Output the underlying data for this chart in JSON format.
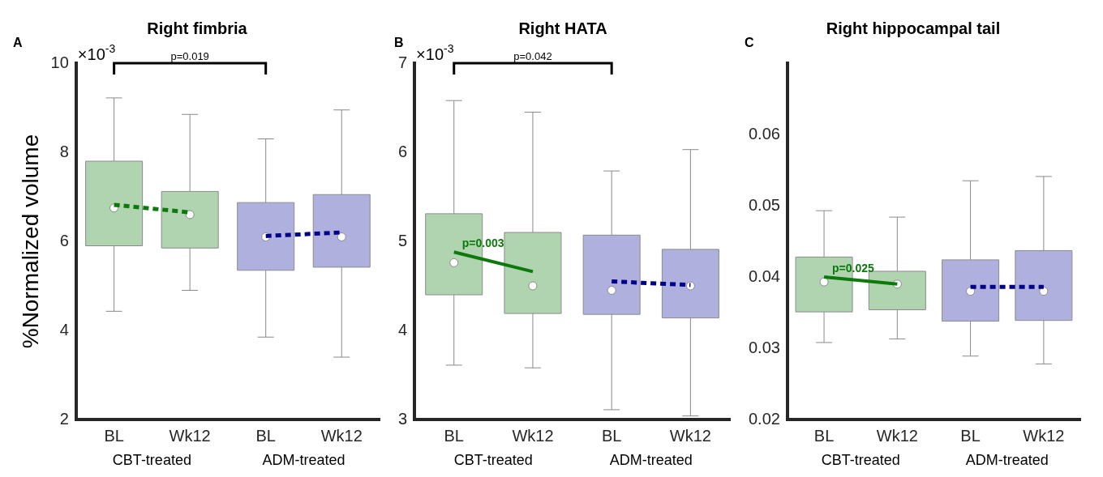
{
  "chart_data": [
    {
      "type": "box",
      "title": "Right fimbria",
      "ylabel": "%Normalized volume",
      "categories": [
        "BL",
        "Wk12",
        "BL",
        "Wk12"
      ],
      "ylim": [
        2,
        10
      ],
      "yticks": [
        2,
        4,
        6,
        8,
        10
      ],
      "grid": false,
      "colors": [
        "#b0d4b0",
        "#b0d4b0",
        "#b0b0de",
        "#b0b0de"
      ],
      "boxes": [
        {
          "low": 4.43,
          "q1": 5.9,
          "median": 6.75,
          "q3": 7.8,
          "high": 9.22
        },
        {
          "low": 4.9,
          "q1": 5.85,
          "median": 6.6,
          "q3": 7.12,
          "high": 8.85
        },
        {
          "low": 3.85,
          "q1": 5.35,
          "median": 6.1,
          "q3": 6.87,
          "high": 8.3
        },
        {
          "low": 3.4,
          "q1": 5.42,
          "median": 6.1,
          "q3": 7.05,
          "high": 8.95
        }
      ],
      "series": [
        {
          "type": "line",
          "color": "#0b7a0b",
          "line_style": "dashed",
          "values": [
            6.82,
            6.65,
            null,
            null
          ]
        },
        {
          "type": "line",
          "color": "#00008b",
          "line_style": "dashed",
          "values": [
            null,
            null,
            6.12,
            6.2
          ]
        }
      ],
      "annotations": [
        "A",
        "×10$^{-3}$",
        "CBT-treated",
        "ADM-treated",
        "p=0.019"
      ]
    },
    {
      "type": "box",
      "title": "Right HATA",
      "categories": [
        "BL",
        "Wk12",
        "BL",
        "Wk12"
      ],
      "ylim": [
        3,
        7
      ],
      "yticks": [
        3,
        4,
        5,
        6,
        7
      ],
      "grid": false,
      "colors": [
        "#b0d4b0",
        "#b0d4b0",
        "#b0b0de",
        "#b0b0de"
      ],
      "boxes": [
        {
          "low": 3.61,
          "q1": 4.4,
          "median": 4.76,
          "q3": 5.31,
          "high": 6.58
        },
        {
          "low": 3.58,
          "q1": 4.19,
          "median": 4.5,
          "q3": 5.1,
          "high": 6.45
        },
        {
          "low": 3.11,
          "q1": 4.18,
          "median": 4.45,
          "q3": 5.07,
          "high": 5.79
        },
        {
          "low": 3.04,
          "q1": 4.14,
          "median": 4.5,
          "q3": 4.91,
          "high": 6.03
        }
      ],
      "series": [
        {
          "type": "line",
          "color": "#0b7a0b",
          "line_style": "solid",
          "values": [
            4.88,
            4.66,
            null,
            null
          ]
        },
        {
          "type": "line",
          "color": "#00008b",
          "line_style": "dashed",
          "values": [
            null,
            null,
            4.55,
            4.51
          ]
        }
      ],
      "annotations": [
        "B",
        "×10$^{-3}$",
        "CBT-treated",
        "ADM-treated",
        "p=0.042",
        {
          "text": "p=0.003",
          "x": "BL",
          "y": 4.88
        }
      ]
    },
    {
      "type": "box",
      "title": "Right hippocampal tail",
      "categories": [
        "BL",
        "Wk12",
        "BL",
        "Wk12"
      ],
      "ylim": [
        0.02,
        0.07
      ],
      "yticks": [
        0.02,
        0.03,
        0.04,
        0.05,
        0.06
      ],
      "grid": false,
      "colors": [
        "#b0d4b0",
        "#b0d4b0",
        "#b0b0de",
        "#b0b0de"
      ],
      "boxes": [
        {
          "low": 0.0308,
          "q1": 0.0351,
          "median": 0.0393,
          "q3": 0.0428,
          "high": 0.0493
        },
        {
          "low": 0.0313,
          "q1": 0.0354,
          "median": 0.039,
          "q3": 0.0408,
          "high": 0.0484
        },
        {
          "low": 0.0289,
          "q1": 0.0338,
          "median": 0.038,
          "q3": 0.0424,
          "high": 0.0535
        },
        {
          "low": 0.0278,
          "q1": 0.0339,
          "median": 0.038,
          "q3": 0.0437,
          "high": 0.0541
        }
      ],
      "series": [
        {
          "type": "line",
          "color": "#0b7a0b",
          "line_style": "solid",
          "values": [
            0.04,
            0.039,
            null,
            null
          ]
        },
        {
          "type": "line",
          "color": "#00008b",
          "line_style": "dashed",
          "values": [
            null,
            null,
            0.0386,
            0.0386
          ]
        }
      ],
      "annotations": [
        "C",
        "CBT-treated",
        "ADM-treated",
        {
          "text": "p=0.025",
          "x": "BL",
          "y": 0.04
        }
      ]
    }
  ]
}
